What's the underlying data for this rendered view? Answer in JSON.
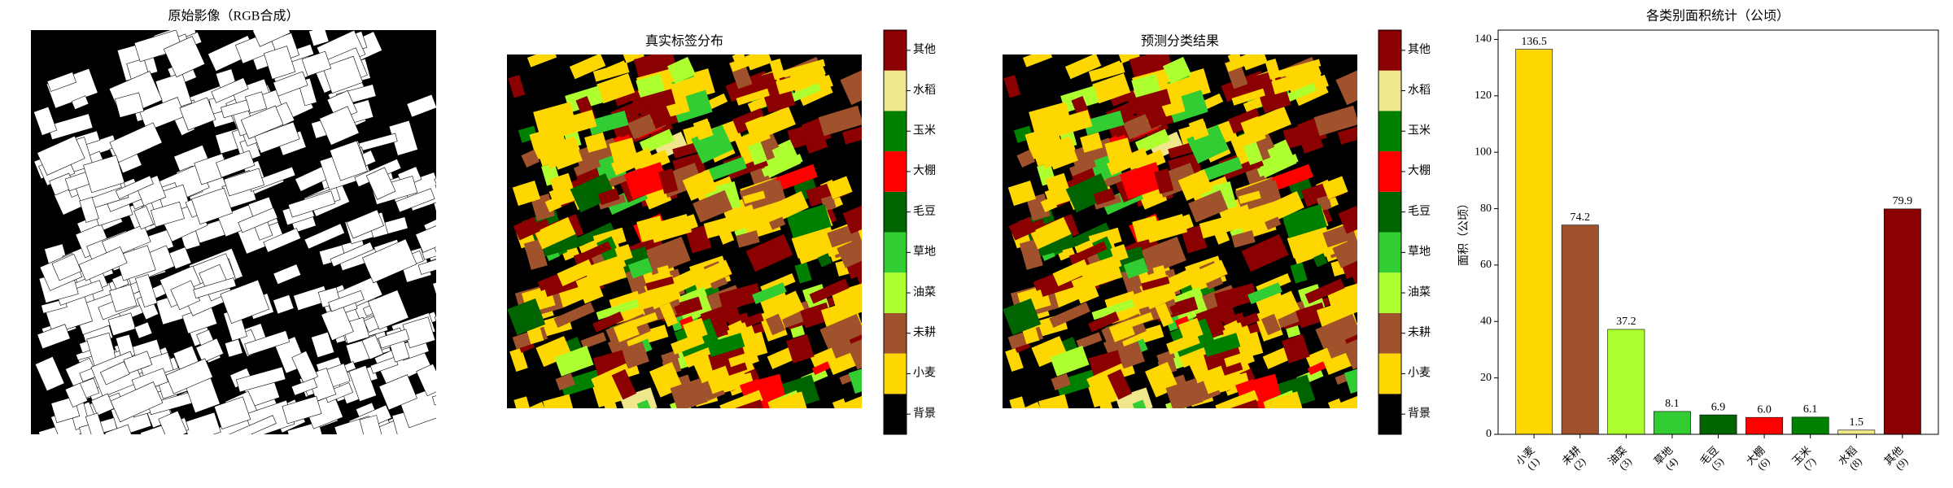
{
  "panels": {
    "image": {
      "title": "原始影像（RGB合成）"
    },
    "truth": {
      "title": "真实标签分布"
    },
    "prediction": {
      "title": "预测分类结果"
    }
  },
  "colorbar": {
    "labels": [
      "背景",
      "小麦",
      "未耕",
      "油菜",
      "草地",
      "毛豆",
      "大棚",
      "玉米",
      "水稻",
      "其他"
    ],
    "colors": [
      "#000000",
      "#FFD700",
      "#A0522D",
      "#ADFF2F",
      "#32CD32",
      "#006400",
      "#FF0000",
      "#008000",
      "#F0E68C",
      "#8B0000"
    ]
  },
  "chart_data": {
    "type": "bar",
    "title": "各类别面积统计（公顷）",
    "ylabel": "面积（公顷）",
    "categories": [
      "小麦\n(1)",
      "未耕\n(2)",
      "油菜\n(3)",
      "草地\n(4)",
      "毛豆\n(5)",
      "大棚\n(6)",
      "玉米\n(7)",
      "水稻\n(8)",
      "其他\n(9)"
    ],
    "values": [
      136.5,
      74.2,
      37.2,
      8.1,
      6.9,
      6.0,
      6.1,
      1.5,
      79.9
    ],
    "value_labels": [
      "136.5",
      "74.2",
      "37.2",
      "8.1",
      "6.9",
      "6.0",
      "6.1",
      "1.5",
      "79.9"
    ],
    "colors": [
      "#FFD700",
      "#A0522D",
      "#ADFF2F",
      "#32CD32",
      "#006400",
      "#FF0000",
      "#008000",
      "#F0E68C",
      "#8B0000"
    ],
    "ylim": [
      0,
      143.3
    ],
    "yticks": [
      0,
      20,
      40,
      60,
      80,
      100,
      120,
      140
    ]
  }
}
